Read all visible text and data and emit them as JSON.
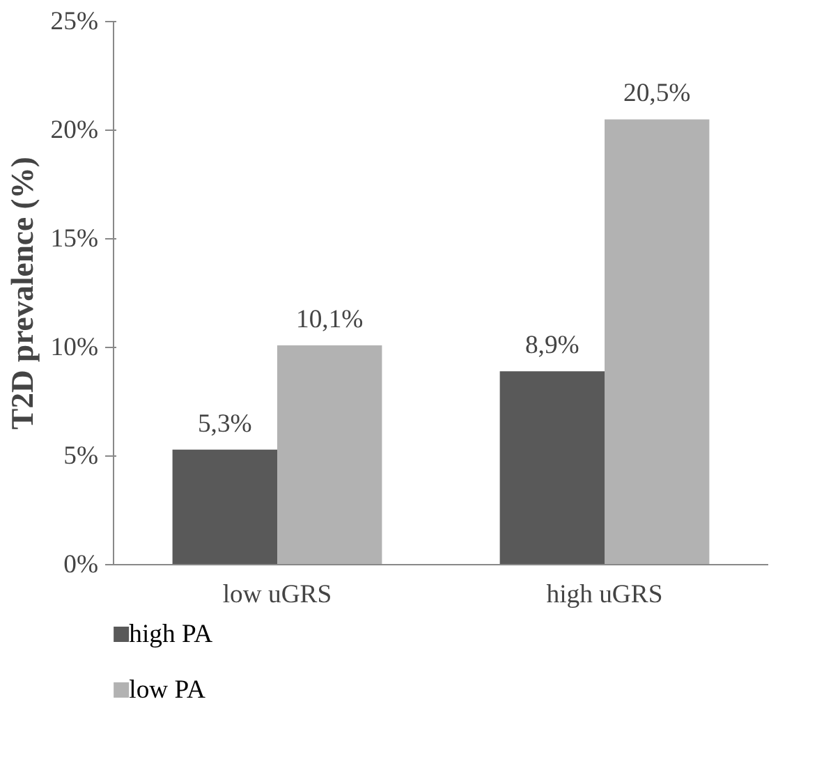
{
  "chart_data": {
    "type": "bar",
    "ylabel": "T2D prevalence (%)",
    "categories": [
      "low uGRS",
      "high uGRS"
    ],
    "series": [
      {
        "name": "high PA",
        "color": "#595959",
        "values": [
          5.3,
          8.9
        ],
        "value_labels": [
          "5,3%",
          "8,9%"
        ]
      },
      {
        "name": "low PA",
        "color": "#b2b2b2",
        "values": [
          10.1,
          20.5
        ],
        "value_labels": [
          "10,1%",
          "20,5%"
        ]
      }
    ],
    "ylim": [
      0,
      25
    ],
    "yticks": [
      {
        "value": 0,
        "label": "0%"
      },
      {
        "value": 5,
        "label": "5%"
      },
      {
        "value": 10,
        "label": "10%"
      },
      {
        "value": 15,
        "label": "15%"
      },
      {
        "value": 20,
        "label": "20%"
      },
      {
        "value": 25,
        "label": "25%"
      }
    ],
    "grid": false,
    "legend": "bottom"
  }
}
